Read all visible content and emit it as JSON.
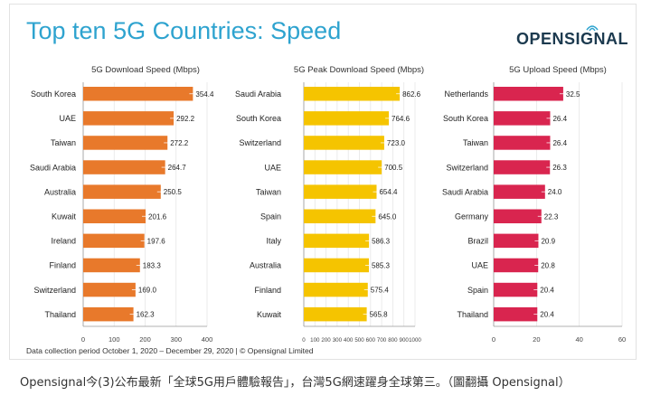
{
  "header": {
    "title": "Top ten 5G Countries: Speed",
    "logo_text": "OPENSIGNAL"
  },
  "footnote": "Data collection period October 1, 2020 – December 29, 2020 | © Opensignal Limited",
  "caption": "Opensignal今(3)公布最新「全球5G用戶體驗報告」，台灣5G網速躍身全球第三。（圖翻攝 Opensignal）",
  "colors": {
    "title": "#2ea3cf",
    "download": "#e8792b",
    "peak": "#f5c400",
    "upload": "#d9254f"
  },
  "chart_data": [
    {
      "type": "bar",
      "orientation": "horizontal",
      "title": "5G Download Speed (Mbps)",
      "categories": [
        "South Korea",
        "UAE",
        "Taiwan",
        "Saudi Arabia",
        "Australia",
        "Kuwait",
        "Ireland",
        "Finland",
        "Switzerland",
        "Thailand"
      ],
      "values": [
        354.4,
        292.2,
        272.2,
        264.7,
        250.5,
        201.6,
        197.6,
        183.3,
        169.0,
        162.3
      ],
      "value_labels": [
        "354.4",
        "292.2",
        "272.2",
        "264.7",
        "250.5",
        "201.6",
        "197.6",
        "183.3",
        "169.0",
        "162.3"
      ],
      "xlim": [
        0,
        400
      ],
      "xticks": [
        0,
        100,
        200,
        300,
        400
      ],
      "color": "#e8792b"
    },
    {
      "type": "bar",
      "orientation": "horizontal",
      "title": "5G Peak Download Speed (Mbps)",
      "categories": [
        "Saudi Arabia",
        "South Korea",
        "Switzerland",
        "UAE",
        "Taiwan",
        "Spain",
        "Italy",
        "Australia",
        "Finland",
        "Kuwait"
      ],
      "values": [
        862.6,
        764.6,
        723.0,
        700.5,
        654.4,
        645.0,
        586.3,
        585.3,
        575.4,
        565.8
      ],
      "value_labels": [
        "862.6",
        "764.6",
        "723.0",
        "700.5",
        "654.4",
        "645.0",
        "586.3",
        "585.3",
        "575.4",
        "565.8"
      ],
      "xlim": [
        0,
        1000
      ],
      "xticks": [
        0,
        100,
        200,
        300,
        400,
        500,
        600,
        700,
        800,
        900,
        1000
      ],
      "color": "#f5c400"
    },
    {
      "type": "bar",
      "orientation": "horizontal",
      "title": "5G Upload Speed (Mbps)",
      "categories": [
        "Netherlands",
        "South Korea",
        "Taiwan",
        "Switzerland",
        "Saudi Arabia",
        "Germany",
        "Brazil",
        "UAE",
        "Spain",
        "Thailand"
      ],
      "values": [
        32.5,
        26.4,
        26.4,
        26.3,
        24.0,
        22.3,
        20.9,
        20.8,
        20.4,
        20.4
      ],
      "value_labels": [
        "32.5",
        "26.4",
        "26.4",
        "26.3",
        "24.0",
        "22.3",
        "20.9",
        "20.8",
        "20.4",
        "20.4"
      ],
      "xlim": [
        0,
        60
      ],
      "xticks": [
        0,
        20,
        40,
        60
      ],
      "color": "#d9254f"
    }
  ]
}
